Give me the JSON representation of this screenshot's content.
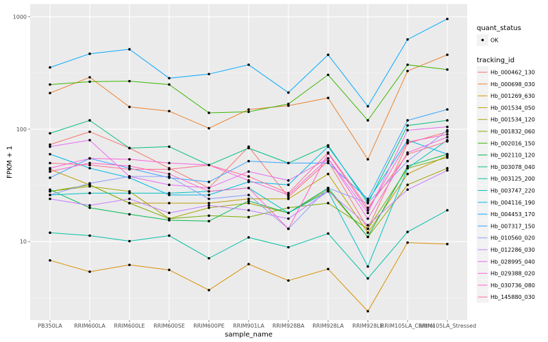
{
  "chart_data": {
    "type": "line",
    "xlabel": "sample_name",
    "ylabel": "FPKM + 1",
    "y_scale": "log10",
    "ylim": [
      2.0,
      1300
    ],
    "y_ticks": [
      10,
      100,
      1000
    ],
    "y_tick_labels": [
      "10",
      "100",
      "1000"
    ],
    "grid": true,
    "categories": [
      "PB350LA",
      "RRIM600LA",
      "RRIM600LE",
      "RRIM600SE",
      "RRIM600PE",
      "RRIM901LA",
      "RRIM928BA",
      "RRIM928LA",
      "RRIM928LE",
      "RRIM105LA_Control",
      "RRIM105LA_Stressed"
    ],
    "legends": [
      {
        "title": "quant_status",
        "entries": [
          "OK"
        ]
      },
      {
        "title": "tracking_id",
        "entries": [
          "Hb_000462_130",
          "Hb_000698_030",
          "Hb_001269_630",
          "Hb_001534_050",
          "Hb_001534_120",
          "Hb_001832_060",
          "Hb_002016_150",
          "Hb_002110_120",
          "Hb_003078_040",
          "Hb_003125_200",
          "Hb_003747_220",
          "Hb_004116_190",
          "Hb_004453_170",
          "Hb_007317_150",
          "Hb_010560_020",
          "Hb_012286_030",
          "Hb_028995_040",
          "Hb_029388_020",
          "Hb_030736_080",
          "Hb_145880_030"
        ]
      }
    ],
    "series": [
      {
        "name": "Hb_000462_130",
        "color": "#F8766D",
        "values": [
          73,
          95,
          68,
          45,
          30,
          70,
          25,
          52,
          13,
          75,
          95
        ]
      },
      {
        "name": "Hb_000698_030",
        "color": "#EA8331",
        "values": [
          210,
          290,
          158,
          145,
          102,
          150,
          162,
          190,
          54,
          330,
          460
        ]
      },
      {
        "name": "Hb_001269_630",
        "color": "#D89000",
        "values": [
          6.8,
          5.4,
          6.2,
          5.6,
          3.7,
          6.3,
          4.5,
          5.7,
          2.4,
          9.8,
          9.5
        ]
      },
      {
        "name": "Hb_001534_050",
        "color": "#C09B00",
        "values": [
          44,
          32,
          22,
          22,
          22,
          24,
          24,
          40,
          12,
          40,
          58
        ]
      },
      {
        "name": "Hb_001534_120",
        "color": "#A3A500",
        "values": [
          28,
          31,
          28,
          16,
          20,
          22,
          18,
          29,
          11,
          32,
          45
        ]
      },
      {
        "name": "Hb_001832_060",
        "color": "#7CAE00",
        "values": [
          28,
          32,
          22,
          16,
          17,
          16.5,
          20,
          22,
          13,
          45,
          56
        ]
      },
      {
        "name": "Hb_002016_150",
        "color": "#39B600",
        "values": [
          250,
          265,
          268,
          250,
          140,
          143,
          168,
          305,
          120,
          375,
          340
        ]
      },
      {
        "name": "Hb_002110_120",
        "color": "#00BB4E",
        "values": [
          29,
          20,
          17.5,
          15.5,
          15.2,
          23,
          18,
          30,
          11,
          47,
          60
        ]
      },
      {
        "name": "Hb_003078_040",
        "color": "#00BF7D",
        "values": [
          92,
          120,
          68,
          70,
          48,
          68,
          50,
          72,
          22,
          108,
          120
        ]
      },
      {
        "name": "Hb_003125_200",
        "color": "#00C1A3",
        "values": [
          12,
          11.3,
          10.1,
          11.3,
          7.1,
          10.9,
          8.9,
          11.8,
          4.7,
          12.2,
          19
        ]
      },
      {
        "name": "Hb_003747_220",
        "color": "#00BFC4",
        "values": [
          26,
          27,
          27,
          27,
          28,
          30,
          18,
          28,
          6,
          45,
          80
        ]
      },
      {
        "name": "Hb_004116_190",
        "color": "#00B8E7",
        "values": [
          60,
          45,
          37,
          26,
          26,
          34,
          32,
          70,
          23,
          80,
          60
        ]
      },
      {
        "name": "Hb_004453_170",
        "color": "#00A9FF",
        "values": [
          355,
          470,
          515,
          285,
          310,
          375,
          212,
          460,
          160,
          630,
          960
        ]
      },
      {
        "name": "Hb_007317_150",
        "color": "#35A2FF",
        "values": [
          37,
          55,
          45,
          37,
          34,
          52,
          50,
          50,
          24,
          120,
          150
        ]
      },
      {
        "name": "Hb_010560_020",
        "color": "#8D9CFF",
        "values": [
          26,
          33,
          38,
          38,
          24,
          26,
          13,
          30,
          22,
          52,
          98
        ]
      },
      {
        "name": "Hb_012286_030",
        "color": "#C77CFF",
        "values": [
          24,
          21,
          24,
          18,
          21,
          19,
          16,
          28,
          14,
          29,
          43
        ]
      },
      {
        "name": "Hb_028995_040",
        "color": "#E76BF3",
        "values": [
          70,
          80,
          38,
          32,
          30,
          42,
          35,
          55,
          18,
          98,
          105
        ]
      },
      {
        "name": "Hb_029388_020",
        "color": "#FA62DB",
        "values": [
          45,
          55,
          54,
          50,
          48,
          35,
          26,
          55,
          16,
          62,
          85
        ]
      },
      {
        "name": "Hb_030736_080",
        "color": "#FF61C3",
        "values": [
          42,
          50,
          47,
          40,
          28,
          30,
          13,
          61,
          19,
          77,
          90
        ]
      },
      {
        "name": "Hb_145880_030",
        "color": "#FF6C91",
        "values": [
          50,
          48,
          44,
          44,
          48,
          38,
          27,
          62,
          20,
          60,
          78
        ]
      }
    ]
  }
}
